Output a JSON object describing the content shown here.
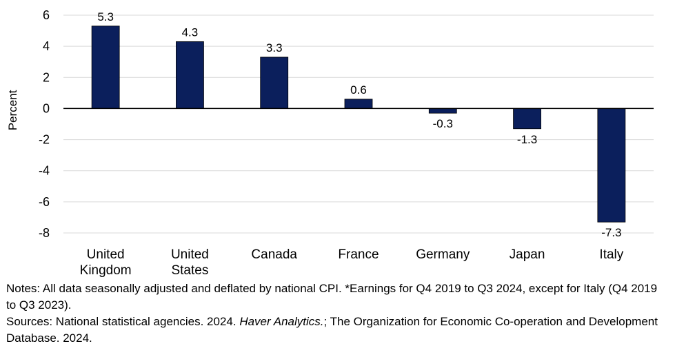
{
  "chart_data": {
    "type": "bar",
    "ylabel": "Percent",
    "ylim": [
      -8,
      6
    ],
    "yticks": [
      6,
      4,
      2,
      0,
      -2,
      -4,
      -6,
      -8
    ],
    "grid": true,
    "categories": [
      [
        "United",
        "Kingdom"
      ],
      [
        "United",
        "States"
      ],
      [
        "Canada"
      ],
      [
        "France"
      ],
      [
        "Germany"
      ],
      [
        "Japan"
      ],
      [
        "Italy"
      ]
    ],
    "values": [
      5.3,
      4.3,
      3.3,
      0.6,
      -0.3,
      -1.3,
      -7.3
    ],
    "value_labels": [
      "5.3",
      "4.3",
      "3.3",
      "0.6",
      "-0.3",
      "-1.3",
      "-7.3"
    ],
    "bar_color": "#0b1f5c",
    "grid_color": "#d9d9d9"
  },
  "notes": {
    "line1": "Notes: All data seasonally adjusted and deflated by national CPI. *Earnings for Q4 2019 to Q3 2024, except for Italy (Q4 2019 to Q3 2023).",
    "sources_prefix": "Sources: National statistical agencies. 2024. ",
    "sources_italic": "Haver Analytics.",
    "sources_suffix": "; The Organization for Economic Co-operation and Development Database. 2024."
  }
}
